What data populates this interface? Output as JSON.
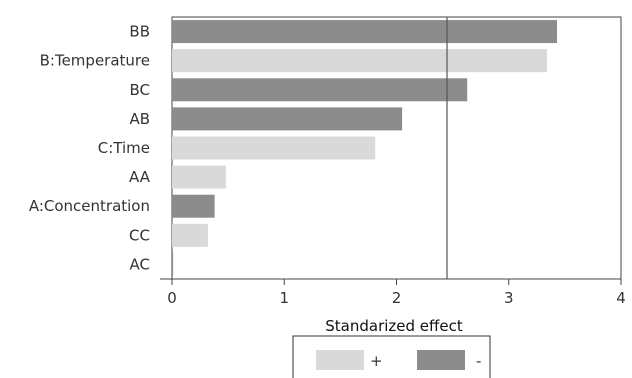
{
  "chart_data": {
    "type": "bar",
    "orientation": "horizontal",
    "categories": [
      "BB",
      "B:Temperature",
      "BC",
      "AB",
      "C:Time",
      "AA",
      "A:Concentration",
      "CC",
      "AC"
    ],
    "values": [
      3.43,
      3.34,
      2.63,
      2.05,
      1.81,
      0.48,
      0.38,
      0.32,
      0.01
    ],
    "signs": [
      "-",
      "+",
      "-",
      "-",
      "+",
      "+",
      "-",
      "+",
      "-"
    ],
    "xlabel": "Standarized effect",
    "xlim": [
      0,
      4
    ],
    "xticks": [
      0,
      1,
      2,
      3,
      4
    ],
    "reference_line": 2.45,
    "legend": {
      "placement": "bottom",
      "entries": [
        {
          "label": "+",
          "color": "#d9d9d9"
        },
        {
          "label": "-",
          "color": "#8c8c8c"
        }
      ]
    }
  }
}
